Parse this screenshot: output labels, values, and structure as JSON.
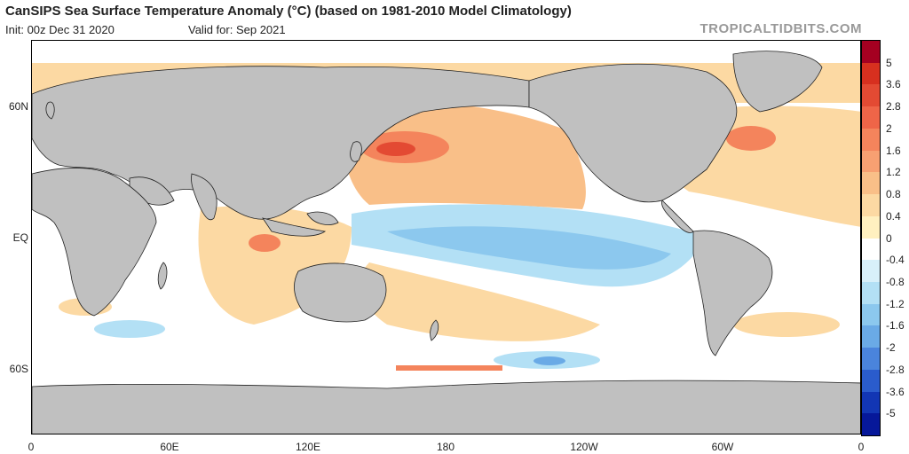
{
  "header": {
    "title": "CanSIPS Sea Surface Temperature Anomaly (°C) (based on 1981-2010 Model Climatology)",
    "init": "Init: 00z Dec 31 2020",
    "valid": "Valid for: Sep 2021",
    "credit": "TROPICALTIDBITS.COM"
  },
  "map": {
    "lat_labels": [
      "60N",
      "EQ",
      "60S"
    ],
    "lon_labels": [
      "0",
      "60E",
      "120E",
      "180",
      "120W",
      "60W",
      "0"
    ],
    "land_color": "#c0c0c0",
    "ocean_color": "#ffffff"
  },
  "colorbar": {
    "labels": [
      "5",
      "3.6",
      "2.8",
      "2",
      "1.6",
      "1.2",
      "0.8",
      "0.4",
      "0",
      "-0.4",
      "-0.8",
      "-1.2",
      "-1.6",
      "-2",
      "-2.8",
      "-3.6",
      "-5"
    ],
    "colors": [
      "#a50021",
      "#d7301f",
      "#e34a33",
      "#ef6548",
      "#f4845c",
      "#f7a072",
      "#f9bf88",
      "#fcd9a3",
      "#fff0c0",
      "#ffffff",
      "#d8f0fa",
      "#b3e0f5",
      "#8cc8ee",
      "#6aaae6",
      "#4a84dc",
      "#2a5ccc",
      "#1236b4",
      "#06189a"
    ]
  }
}
